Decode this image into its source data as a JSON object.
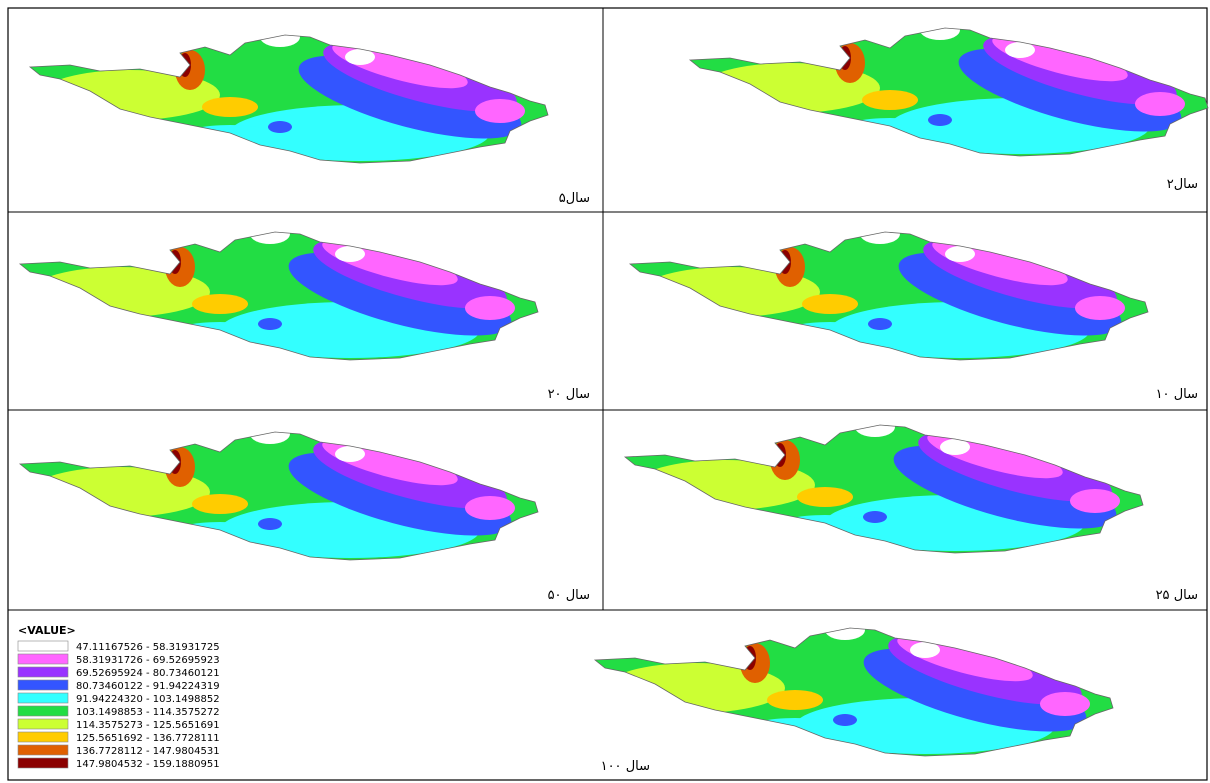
{
  "panels": [
    {
      "label": "۵سال"
    },
    {
      "label": "۲سال"
    },
    {
      "label": "۲۰ سال"
    },
    {
      "label": "۱۰ سال"
    },
    {
      "label": "۵۰ سال"
    },
    {
      "label": "۲۵ سال"
    },
    {
      "label": "۱۰۰ سال"
    }
  ],
  "legend": {
    "title": "<VALUE>",
    "items": [
      {
        "label": "47.11167526 - 58.31931725",
        "color": "#ffffff"
      },
      {
        "label": "58.31931726 - 69.52695923",
        "color": "#ff66ff"
      },
      {
        "label": "69.52695924 - 80.73460121",
        "color": "#9933ff"
      },
      {
        "label": "80.73460122 - 91.94224319",
        "color": "#3355ff"
      },
      {
        "label": "91.94224320 - 103.1498852",
        "color": "#33ffff"
      },
      {
        "label": "103.1498853 - 114.3575272",
        "color": "#22dd44"
      },
      {
        "label": "114.3575273 - 125.5651691",
        "color": "#ccff33"
      },
      {
        "label": "125.5651692 - 136.7728111",
        "color": "#ffcc00"
      },
      {
        "label": "136.7728112 - 147.9804531",
        "color": "#e06000"
      },
      {
        "label": "147.9804532 - 159.1880951",
        "color": "#8b0000"
      }
    ]
  }
}
